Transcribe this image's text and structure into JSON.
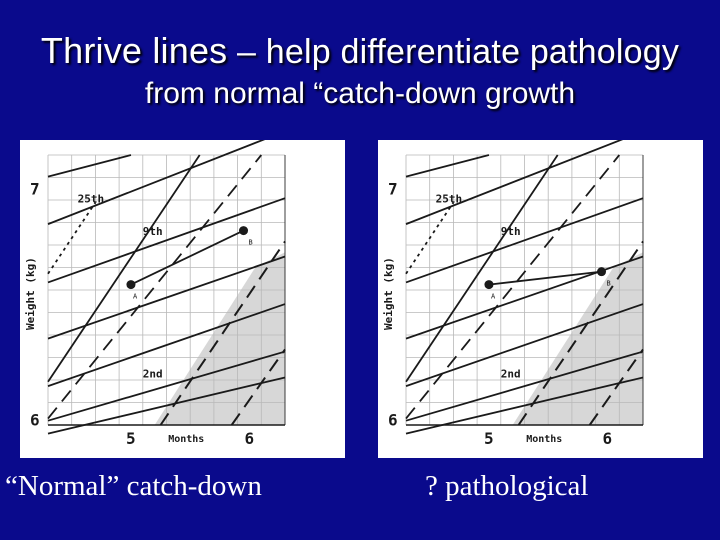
{
  "slide": {
    "title_lead": "Thrive lines",
    "title_rest": " – help differentiate pathology",
    "subtitle": "from normal “catch-down growth",
    "caption_left": "“Normal” catch-down",
    "caption_right": "? pathological"
  },
  "colors": {
    "background": "#0a0a8c",
    "paper": "#ffffff",
    "ink": "#1a1a1a",
    "grid": "#b8b8b8",
    "shade": "#d0d0d0"
  },
  "chart_data": [
    {
      "type": "line",
      "ylabel": "Weight (kg)",
      "xlabel": "Months",
      "y_ticks": [
        "7",
        "6"
      ],
      "x_ticks": [
        "5",
        "6"
      ],
      "xlim": [
        4.3,
        6.3
      ],
      "ylim": [
        5.9,
        7.15
      ],
      "centiles": [
        {
          "name": "25th",
          "points": [
            [
              4.3,
              6.83
            ],
            [
              6.3,
              7.26
            ]
          ]
        },
        {
          "name": "9th",
          "points": [
            [
              4.3,
              6.56
            ],
            [
              6.3,
              6.95
            ]
          ]
        },
        {
          "name": "2nd",
          "points": [
            [
              4.3,
              5.92
            ],
            [
              6.3,
              6.24
            ]
          ]
        }
      ],
      "points": [
        {
          "label": "A",
          "x": 5.0,
          "y": 6.55
        },
        {
          "label": "B",
          "x": 5.95,
          "y": 6.8
        }
      ],
      "grid": true
    },
    {
      "type": "line",
      "ylabel": "Weight (kg)",
      "xlabel": "Months",
      "y_ticks": [
        "7",
        "6"
      ],
      "x_ticks": [
        "5",
        "6"
      ],
      "xlim": [
        4.3,
        6.3
      ],
      "ylim": [
        5.9,
        7.15
      ],
      "centiles": [
        {
          "name": "25th",
          "points": [
            [
              4.3,
              6.83
            ],
            [
              6.3,
              7.26
            ]
          ]
        },
        {
          "name": "9th",
          "points": [
            [
              4.3,
              6.56
            ],
            [
              6.3,
              6.95
            ]
          ]
        },
        {
          "name": "2nd",
          "points": [
            [
              4.3,
              5.92
            ],
            [
              6.3,
              6.24
            ]
          ]
        }
      ],
      "points": [
        {
          "label": "A",
          "x": 5.0,
          "y": 6.55
        },
        {
          "label": "B",
          "x": 5.95,
          "y": 6.61
        }
      ],
      "grid": true
    }
  ]
}
